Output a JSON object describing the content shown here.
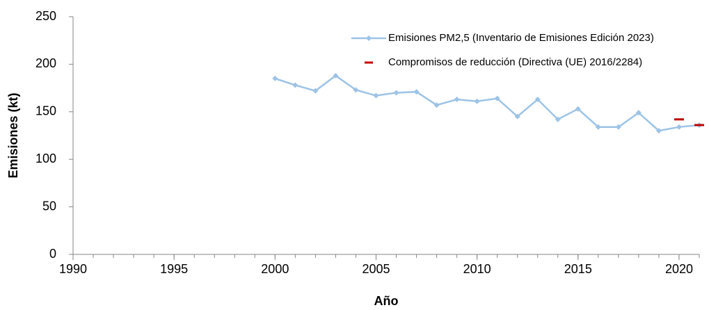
{
  "chart_data": {
    "type": "line",
    "x_label": "Año",
    "y_label": "Emisiones (kt)",
    "x": [
      1990,
      1991,
      1992,
      1993,
      1994,
      1995,
      1996,
      1997,
      1998,
      1999,
      2000,
      2001,
      2002,
      2003,
      2004,
      2005,
      2006,
      2007,
      2008,
      2009,
      2010,
      2011,
      2012,
      2013,
      2014,
      2015,
      2016,
      2017,
      2018,
      2019,
      2020,
      2021
    ],
    "series": [
      {
        "name": "Emisiones PM2,5 (Inventario de Emisiones Edición 2023)",
        "color": "#9dc3e6",
        "values": [
          null,
          null,
          null,
          null,
          null,
          null,
          null,
          null,
          null,
          null,
          185,
          178,
          172,
          188,
          173,
          167,
          170,
          171,
          157,
          163,
          161,
          164,
          145,
          163,
          142,
          153,
          134,
          134,
          149,
          130,
          134,
          136
        ]
      },
      {
        "name": "Compromisos de reducción (Directiva (UE) 2016/2284)",
        "color": "#c00000",
        "values": [
          null,
          null,
          null,
          null,
          null,
          null,
          null,
          null,
          null,
          null,
          null,
          null,
          null,
          null,
          null,
          null,
          null,
          null,
          null,
          null,
          null,
          null,
          null,
          null,
          null,
          null,
          null,
          null,
          null,
          null,
          142,
          136
        ]
      }
    ],
    "xlim": [
      1990,
      2021
    ],
    "xticks": [
      1990,
      1995,
      2000,
      2005,
      2010,
      2015,
      2020
    ],
    "ylim": [
      0,
      250
    ],
    "yticks": [
      0,
      50,
      100,
      150,
      200,
      250
    ],
    "grid": false,
    "legend": "upper right"
  }
}
